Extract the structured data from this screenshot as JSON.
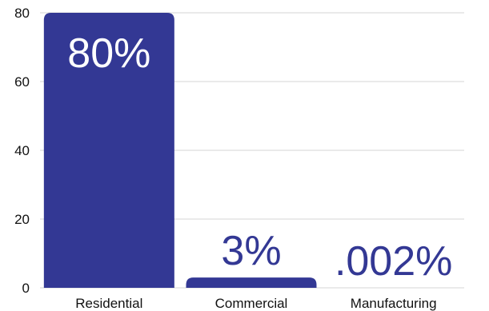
{
  "chart_data": {
    "type": "bar",
    "categories": [
      "Residential",
      "Commercial",
      "Manufacturing"
    ],
    "values": [
      80,
      3,
      0.002
    ],
    "data_labels": [
      "80%",
      "3%",
      ".002%"
    ],
    "ylim": [
      0,
      80
    ],
    "yticks": [
      0,
      20,
      40,
      60,
      80
    ],
    "ytick_labels": [
      "0",
      "20",
      "40",
      "60",
      "80"
    ],
    "grid": true,
    "legend": "none",
    "title": "",
    "xlabel": "",
    "ylabel": "",
    "colors": {
      "bar": "#333894",
      "grid": "#d4d4d4",
      "label_outside": "#333894",
      "label_inside": "#ffffff",
      "text": "#111111"
    }
  }
}
